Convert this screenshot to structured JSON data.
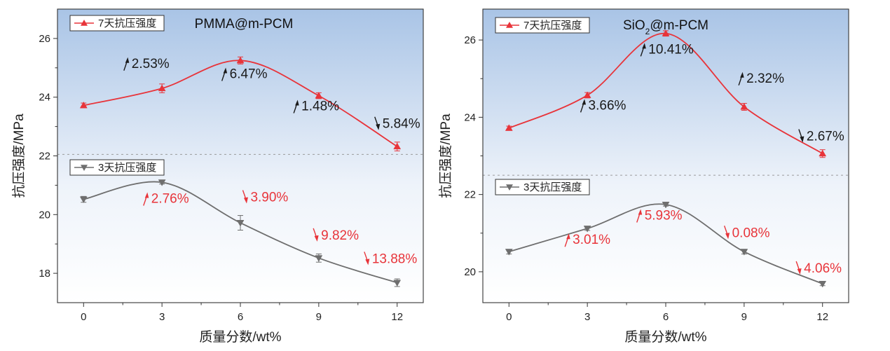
{
  "chart_data": [
    {
      "type": "line",
      "title": "PMMA@m-PCM",
      "title_sub": "",
      "title_rest": "",
      "xlabel": "质量分数/wt%",
      "ylabel": "抗压强度/MPa",
      "xlim": [
        -1,
        13
      ],
      "ylim": [
        17,
        27
      ],
      "xticks": [
        0,
        3,
        6,
        9,
        12
      ],
      "yticks": [
        18,
        20,
        22,
        24,
        26
      ],
      "grid": false,
      "reference_line_y": 22.05,
      "background": "blue-gradient-top",
      "series": [
        {
          "name": "7天抗压强度",
          "color": "#e8343a",
          "marker": "triangle-up",
          "x": [
            0,
            3,
            6,
            9,
            12
          ],
          "y": [
            23.72,
            24.3,
            25.25,
            24.05,
            22.32
          ],
          "errors": [
            0.08,
            0.15,
            0.12,
            0.1,
            0.15
          ],
          "labels": [
            {
              "text": "2.53%",
              "x": 1.65,
              "y": 25.0,
              "arrow": "up"
            },
            {
              "text": "6.47%",
              "x": 5.4,
              "y": 24.65,
              "arrow": "up"
            },
            {
              "text": "1.48%",
              "x": 8.15,
              "y": 23.55,
              "arrow": "up"
            },
            {
              "text": "5.84%",
              "x": 11.25,
              "y": 22.95,
              "arrow": "down"
            }
          ]
        },
        {
          "name": "3天抗压强度",
          "color": "#6e6e6e",
          "label_color": "#e8343a",
          "marker": "triangle-down",
          "x": [
            0,
            3,
            6,
            9,
            12
          ],
          "y": [
            20.52,
            21.1,
            19.72,
            18.52,
            17.68
          ],
          "errors": [
            0.1,
            0.06,
            0.25,
            0.14,
            0.13
          ],
          "labels": [
            {
              "text": "2.76%",
              "x": 2.4,
              "y": 20.4,
              "arrow": "up"
            },
            {
              "text": "3.90%",
              "x": 6.2,
              "y": 20.45,
              "arrow": "down"
            },
            {
              "text": "9.82%",
              "x": 8.9,
              "y": 19.15,
              "arrow": "down"
            },
            {
              "text": "13.88%",
              "x": 10.85,
              "y": 18.35,
              "arrow": "down"
            }
          ]
        }
      ]
    },
    {
      "type": "line",
      "title": "SiO",
      "title_sub": "2",
      "title_rest": "@m-PCM",
      "xlabel": "质量分数/wt%",
      "ylabel": "抗压强度/MPa",
      "xlim": [
        -1,
        13
      ],
      "ylim": [
        19.2,
        26.8
      ],
      "xticks": [
        0,
        3,
        6,
        9,
        12
      ],
      "yticks": [
        20,
        22,
        24,
        26
      ],
      "grid": false,
      "reference_line_y": 22.5,
      "background": "blue-gradient-top",
      "series": [
        {
          "name": "7天抗压强度",
          "color": "#e8343a",
          "marker": "triangle-up",
          "x": [
            0,
            3,
            6,
            9,
            12
          ],
          "y": [
            23.72,
            24.57,
            26.17,
            24.27,
            23.06
          ],
          "errors": [
            0.05,
            0.07,
            0.07,
            0.09,
            0.1
          ],
          "labels": [
            {
              "text": "3.66%",
              "x": 2.85,
              "y": 24.2,
              "arrow": "up"
            },
            {
              "text": "10.41%",
              "x": 5.15,
              "y": 25.65,
              "arrow": "up"
            },
            {
              "text": "2.32%",
              "x": 8.9,
              "y": 24.9,
              "arrow": "up"
            },
            {
              "text": "2.67%",
              "x": 11.2,
              "y": 23.4,
              "arrow": "down"
            }
          ]
        },
        {
          "name": "3天抗压强度",
          "color": "#6e6e6e",
          "label_color": "#e8343a",
          "marker": "triangle-down",
          "x": [
            0,
            3,
            6,
            9,
            12
          ],
          "y": [
            20.52,
            21.12,
            21.74,
            20.52,
            19.69
          ],
          "errors": [
            0.06,
            0.05,
            0.04,
            0.06,
            0.05
          ],
          "labels": [
            {
              "text": "3.01%",
              "x": 2.25,
              "y": 20.72,
              "arrow": "up"
            },
            {
              "text": "5.93%",
              "x": 5.0,
              "y": 21.35,
              "arrow": "up"
            },
            {
              "text": "0.08%",
              "x": 8.35,
              "y": 20.9,
              "arrow": "down"
            },
            {
              "text": "4.06%",
              "x": 11.1,
              "y": 19.98,
              "arrow": "down"
            }
          ]
        }
      ]
    }
  ]
}
